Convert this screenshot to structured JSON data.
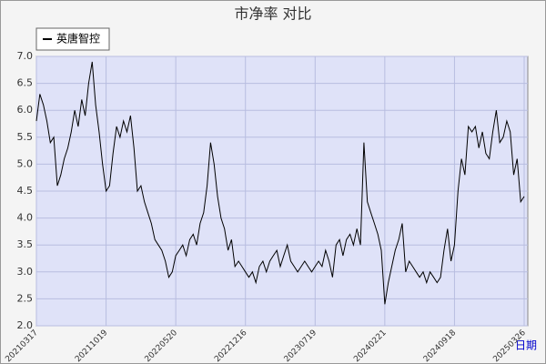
{
  "chart_data": {
    "type": "line",
    "title": "市净率  对比",
    "x_label": "日期",
    "categories": [
      "20210317",
      null,
      null,
      null,
      null,
      null,
      null,
      null,
      null,
      null,
      null,
      null,
      null,
      null,
      null,
      null,
      null,
      null,
      null,
      null,
      "20211019",
      null,
      null,
      null,
      null,
      null,
      null,
      null,
      null,
      null,
      null,
      null,
      null,
      null,
      null,
      null,
      null,
      null,
      null,
      null,
      "20220520",
      null,
      null,
      null,
      null,
      null,
      null,
      null,
      null,
      null,
      null,
      null,
      null,
      null,
      null,
      null,
      null,
      null,
      null,
      null,
      "20221216",
      null,
      null,
      null,
      null,
      null,
      null,
      null,
      null,
      null,
      null,
      null,
      null,
      null,
      null,
      null,
      null,
      null,
      null,
      null,
      "20230719",
      null,
      null,
      null,
      null,
      null,
      null,
      null,
      null,
      null,
      null,
      null,
      null,
      null,
      null,
      null,
      null,
      null,
      null,
      null,
      "20240221",
      null,
      null,
      null,
      null,
      null,
      null,
      null,
      null,
      null,
      null,
      null,
      null,
      null,
      null,
      null,
      null,
      null,
      null,
      null,
      "20240918",
      null,
      null,
      null,
      null,
      null,
      null,
      null,
      null,
      null,
      null,
      null,
      null,
      null,
      null,
      null,
      null,
      null,
      null,
      null,
      "20250326"
    ],
    "series": [
      {
        "name": "英唐智控",
        "color": "#000000",
        "values": [
          5.8,
          6.3,
          6.1,
          5.8,
          5.4,
          5.5,
          4.6,
          4.8,
          5.1,
          5.3,
          5.6,
          6.0,
          5.7,
          6.2,
          5.9,
          6.5,
          6.9,
          6.1,
          5.6,
          5.0,
          4.5,
          4.6,
          5.2,
          5.7,
          5.5,
          5.8,
          5.6,
          5.9,
          5.3,
          4.5,
          4.6,
          4.3,
          4.1,
          3.9,
          3.6,
          3.5,
          3.4,
          3.2,
          2.9,
          3.0,
          3.3,
          3.4,
          3.5,
          3.3,
          3.6,
          3.7,
          3.5,
          3.9,
          4.1,
          4.6,
          5.4,
          5.0,
          4.4,
          4.0,
          3.8,
          3.4,
          3.6,
          3.1,
          3.2,
          3.1,
          3.0,
          2.9,
          3.0,
          2.8,
          3.1,
          3.2,
          3.0,
          3.2,
          3.3,
          3.4,
          3.1,
          3.3,
          3.5,
          3.2,
          3.1,
          3.0,
          3.1,
          3.2,
          3.1,
          3.0,
          3.1,
          3.2,
          3.1,
          3.4,
          3.2,
          2.9,
          3.5,
          3.6,
          3.3,
          3.6,
          3.7,
          3.5,
          3.8,
          3.5,
          5.4,
          4.3,
          4.1,
          3.9,
          3.7,
          3.4,
          2.4,
          2.8,
          3.1,
          3.4,
          3.6,
          3.9,
          3.0,
          3.2,
          3.1,
          3.0,
          2.9,
          3.0,
          2.8,
          3.0,
          2.9,
          2.8,
          2.9,
          3.4,
          3.8,
          3.2,
          3.5,
          4.5,
          5.1,
          4.8,
          5.7,
          5.6,
          5.7,
          5.3,
          5.6,
          5.2,
          5.1,
          5.6,
          6.0,
          5.4,
          5.5,
          5.8,
          5.6,
          4.8,
          5.1,
          4.3,
          4.4
        ]
      }
    ],
    "ylim": [
      2,
      7
    ],
    "yticks": [
      {
        "value": 2,
        "label": "2.0"
      },
      2.5,
      {
        "value": 3,
        "label": "3.0"
      },
      3.5,
      {
        "value": 4,
        "label": "4.0"
      },
      4.5,
      {
        "value": 5,
        "label": "5.0"
      },
      5.5,
      {
        "value": 6,
        "label": "6.0"
      },
      6.5,
      {
        "value": 7,
        "label": "7.0"
      }
    ],
    "grid": true,
    "legend": "top-left"
  }
}
